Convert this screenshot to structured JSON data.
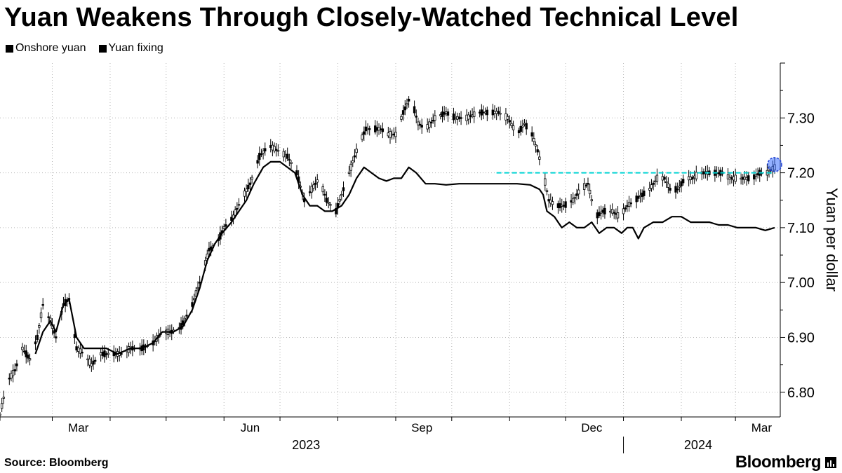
{
  "title": "Yuan Weakens Through Closely-Watched Technical Level",
  "legend": [
    {
      "label": "Onshore yuan",
      "color": "#000000"
    },
    {
      "label": "Yuan fixing",
      "color": "#000000"
    }
  ],
  "source": "Source: Bloomberg",
  "brand": "Bloomberg",
  "colors": {
    "threshold": "#00d4d4",
    "highlight": "#3b6fff",
    "grid": "#b4b4b4"
  },
  "chart_data": {
    "type": "line",
    "title": "Yuan Weakens Through Closely-Watched Technical Level",
    "ylabel": "Yuan per dollar",
    "ylim": [
      6.755,
      7.4
    ],
    "yticks": [
      6.8,
      6.9,
      7.0,
      7.1,
      7.2,
      7.3
    ],
    "ytick_labels": [
      "6.80",
      "6.90",
      "7.00",
      "7.10",
      "7.20",
      "7.30"
    ],
    "xlim": [
      "2023-02-01",
      "2024-03-25"
    ],
    "month_ticks": [
      "2023-02-01",
      "2023-03-01",
      "2023-04-01",
      "2023-05-01",
      "2023-06-01",
      "2023-07-01",
      "2023-08-01",
      "2023-09-01",
      "2023-10-01",
      "2023-11-01",
      "2023-12-01",
      "2024-01-01",
      "2024-02-01",
      "2024-03-01"
    ],
    "x_labels": [
      {
        "label": "Mar",
        "date": "2023-03-15"
      },
      {
        "label": "Jun",
        "date": "2023-06-15"
      },
      {
        "label": "Sep",
        "date": "2023-09-15"
      },
      {
        "label": "Dec",
        "date": "2023-12-15"
      },
      {
        "label": "Mar",
        "date": "2024-03-15"
      }
    ],
    "year_labels": [
      {
        "label": "2023",
        "date": "2023-07-15"
      },
      {
        "label": "2024",
        "date": "2024-02-10"
      }
    ],
    "year_divider": "2024-01-01",
    "threshold": {
      "value": 7.2,
      "from": "2023-10-25",
      "to": "2024-03-22"
    },
    "highlight": {
      "date": "2024-03-22",
      "value": 7.215
    },
    "series": [
      {
        "name": "Onshore yuan",
        "style": "candlestick",
        "points": [
          [
            "2023-02-01",
            6.76
          ],
          [
            "2023-02-05",
            6.82
          ],
          [
            "2023-02-09",
            6.84
          ],
          [
            "2023-02-13",
            6.88
          ],
          [
            "2023-02-17",
            6.86
          ],
          [
            "2023-02-21",
            6.9
          ],
          [
            "2023-02-24",
            6.96
          ],
          [
            "2023-02-28",
            6.93
          ],
          [
            "2023-03-03",
            6.9
          ],
          [
            "2023-03-07",
            6.96
          ],
          [
            "2023-03-10",
            6.97
          ],
          [
            "2023-03-14",
            6.88
          ],
          [
            "2023-03-18",
            6.87
          ],
          [
            "2023-03-22",
            6.85
          ],
          [
            "2023-03-27",
            6.87
          ],
          [
            "2023-04-01",
            6.87
          ],
          [
            "2023-04-07",
            6.87
          ],
          [
            "2023-04-12",
            6.88
          ],
          [
            "2023-04-18",
            6.88
          ],
          [
            "2023-04-24",
            6.89
          ],
          [
            "2023-04-29",
            6.91
          ],
          [
            "2023-05-04",
            6.91
          ],
          [
            "2023-05-09",
            6.92
          ],
          [
            "2023-05-15",
            6.96
          ],
          [
            "2023-05-19",
            7.0
          ],
          [
            "2023-05-24",
            7.06
          ],
          [
            "2023-05-28",
            7.07
          ],
          [
            "2023-06-01",
            7.1
          ],
          [
            "2023-06-06",
            7.12
          ],
          [
            "2023-06-10",
            7.15
          ],
          [
            "2023-06-15",
            7.18
          ],
          [
            "2023-06-20",
            7.23
          ],
          [
            "2023-06-25",
            7.25
          ],
          [
            "2023-06-30",
            7.24
          ],
          [
            "2023-07-05",
            7.23
          ],
          [
            "2023-07-10",
            7.2
          ],
          [
            "2023-07-14",
            7.15
          ],
          [
            "2023-07-18",
            7.17
          ],
          [
            "2023-07-22",
            7.19
          ],
          [
            "2023-07-26",
            7.15
          ],
          [
            "2023-07-31",
            7.13
          ],
          [
            "2023-08-04",
            7.17
          ],
          [
            "2023-08-08",
            7.21
          ],
          [
            "2023-08-12",
            7.25
          ],
          [
            "2023-08-16",
            7.28
          ],
          [
            "2023-08-20",
            7.28
          ],
          [
            "2023-08-24",
            7.28
          ],
          [
            "2023-08-28",
            7.27
          ],
          [
            "2023-09-01",
            7.27
          ],
          [
            "2023-09-05",
            7.31
          ],
          [
            "2023-09-09",
            7.34
          ],
          [
            "2023-09-13",
            7.29
          ],
          [
            "2023-09-17",
            7.28
          ],
          [
            "2023-09-22",
            7.3
          ],
          [
            "2023-09-28",
            7.31
          ],
          [
            "2023-10-03",
            7.3
          ],
          [
            "2023-10-09",
            7.3
          ],
          [
            "2023-10-15",
            7.31
          ],
          [
            "2023-10-20",
            7.31
          ],
          [
            "2023-10-26",
            7.31
          ],
          [
            "2023-10-31",
            7.3
          ],
          [
            "2023-11-05",
            7.27
          ],
          [
            "2023-11-09",
            7.29
          ],
          [
            "2023-11-13",
            7.27
          ],
          [
            "2023-11-16",
            7.24
          ],
          [
            "2023-11-19",
            7.2
          ],
          [
            "2023-11-22",
            7.15
          ],
          [
            "2023-11-26",
            7.14
          ],
          [
            "2023-11-30",
            7.14
          ],
          [
            "2023-12-05",
            7.15
          ],
          [
            "2023-12-09",
            7.17
          ],
          [
            "2023-12-13",
            7.18
          ],
          [
            "2023-12-17",
            7.12
          ],
          [
            "2023-12-21",
            7.13
          ],
          [
            "2023-12-26",
            7.13
          ],
          [
            "2023-12-30",
            7.12
          ],
          [
            "2024-01-03",
            7.14
          ],
          [
            "2024-01-07",
            7.15
          ],
          [
            "2024-01-11",
            7.16
          ],
          [
            "2024-01-15",
            7.17
          ],
          [
            "2024-01-19",
            7.19
          ],
          [
            "2024-01-23",
            7.19
          ],
          [
            "2024-01-26",
            7.17
          ],
          [
            "2024-01-30",
            7.17
          ],
          [
            "2024-02-03",
            7.19
          ],
          [
            "2024-02-07",
            7.19
          ],
          [
            "2024-02-11",
            7.2
          ],
          [
            "2024-02-15",
            7.2
          ],
          [
            "2024-02-19",
            7.2
          ],
          [
            "2024-02-23",
            7.2
          ],
          [
            "2024-02-27",
            7.19
          ],
          [
            "2024-03-02",
            7.19
          ],
          [
            "2024-03-06",
            7.19
          ],
          [
            "2024-03-10",
            7.19
          ],
          [
            "2024-03-14",
            7.2
          ],
          [
            "2024-03-18",
            7.2
          ],
          [
            "2024-03-22",
            7.21
          ]
        ]
      },
      {
        "name": "Yuan fixing",
        "style": "line",
        "points": [
          [
            "2023-02-20",
            6.87
          ],
          [
            "2023-02-24",
            6.91
          ],
          [
            "2023-02-28",
            6.93
          ],
          [
            "2023-03-03",
            6.91
          ],
          [
            "2023-03-07",
            6.96
          ],
          [
            "2023-03-10",
            6.97
          ],
          [
            "2023-03-14",
            6.9
          ],
          [
            "2023-03-18",
            6.88
          ],
          [
            "2023-03-24",
            6.88
          ],
          [
            "2023-03-30",
            6.88
          ],
          [
            "2023-04-05",
            6.87
          ],
          [
            "2023-04-12",
            6.88
          ],
          [
            "2023-04-18",
            6.88
          ],
          [
            "2023-04-24",
            6.89
          ],
          [
            "2023-04-29",
            6.91
          ],
          [
            "2023-05-05",
            6.91
          ],
          [
            "2023-05-10",
            6.92
          ],
          [
            "2023-05-15",
            6.95
          ],
          [
            "2023-05-19",
            6.99
          ],
          [
            "2023-05-23",
            7.04
          ],
          [
            "2023-05-27",
            7.07
          ],
          [
            "2023-05-31",
            7.09
          ],
          [
            "2023-06-05",
            7.11
          ],
          [
            "2023-06-09",
            7.13
          ],
          [
            "2023-06-13",
            7.15
          ],
          [
            "2023-06-17",
            7.18
          ],
          [
            "2023-06-22",
            7.21
          ],
          [
            "2023-06-26",
            7.22
          ],
          [
            "2023-07-01",
            7.22
          ],
          [
            "2023-07-05",
            7.21
          ],
          [
            "2023-07-09",
            7.2
          ],
          [
            "2023-07-13",
            7.16
          ],
          [
            "2023-07-17",
            7.14
          ],
          [
            "2023-07-21",
            7.14
          ],
          [
            "2023-07-25",
            7.13
          ],
          [
            "2023-07-29",
            7.13
          ],
          [
            "2023-08-03",
            7.14
          ],
          [
            "2023-08-07",
            7.16
          ],
          [
            "2023-08-11",
            7.19
          ],
          [
            "2023-08-15",
            7.21
          ],
          [
            "2023-08-19",
            7.2
          ],
          [
            "2023-08-23",
            7.19
          ],
          [
            "2023-08-27",
            7.185
          ],
          [
            "2023-08-31",
            7.19
          ],
          [
            "2023-09-04",
            7.19
          ],
          [
            "2023-09-08",
            7.21
          ],
          [
            "2023-09-12",
            7.2
          ],
          [
            "2023-09-17",
            7.18
          ],
          [
            "2023-09-22",
            7.18
          ],
          [
            "2023-09-28",
            7.178
          ],
          [
            "2023-10-05",
            7.18
          ],
          [
            "2023-10-15",
            7.18
          ],
          [
            "2023-10-25",
            7.18
          ],
          [
            "2023-11-05",
            7.18
          ],
          [
            "2023-11-12",
            7.178
          ],
          [
            "2023-11-17",
            7.17
          ],
          [
            "2023-11-19",
            7.16
          ],
          [
            "2023-11-21",
            7.13
          ],
          [
            "2023-11-25",
            7.12
          ],
          [
            "2023-11-29",
            7.1
          ],
          [
            "2023-12-03",
            7.11
          ],
          [
            "2023-12-07",
            7.1
          ],
          [
            "2023-12-11",
            7.1
          ],
          [
            "2023-12-15",
            7.11
          ],
          [
            "2023-12-19",
            7.09
          ],
          [
            "2023-12-23",
            7.1
          ],
          [
            "2023-12-27",
            7.1
          ],
          [
            "2023-12-31",
            7.09
          ],
          [
            "2024-01-03",
            7.1
          ],
          [
            "2024-01-06",
            7.1
          ],
          [
            "2024-01-09",
            7.08
          ],
          [
            "2024-01-12",
            7.1
          ],
          [
            "2024-01-17",
            7.11
          ],
          [
            "2024-01-22",
            7.11
          ],
          [
            "2024-01-27",
            7.12
          ],
          [
            "2024-02-01",
            7.12
          ],
          [
            "2024-02-06",
            7.11
          ],
          [
            "2024-02-11",
            7.11
          ],
          [
            "2024-02-16",
            7.11
          ],
          [
            "2024-02-21",
            7.105
          ],
          [
            "2024-02-26",
            7.105
          ],
          [
            "2024-03-02",
            7.1
          ],
          [
            "2024-03-07",
            7.1
          ],
          [
            "2024-03-12",
            7.1
          ],
          [
            "2024-03-17",
            7.095
          ],
          [
            "2024-03-22",
            7.1
          ]
        ]
      }
    ]
  }
}
